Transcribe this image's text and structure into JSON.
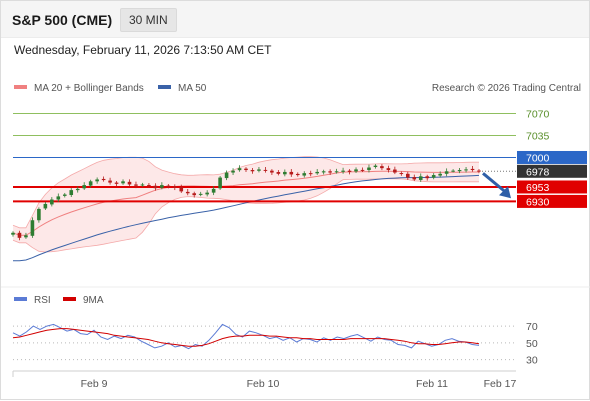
{
  "header": {
    "symbol": "S&P 500 (CME)",
    "timeframe": "30 MIN",
    "datetime": "Wednesday, February 11, 2026 7:13:50 AM CET"
  },
  "chart_data": [
    {
      "type": "candlestick",
      "legend": [
        {
          "name": "MA 20 + Bollinger Bands",
          "color": "#f08080"
        },
        {
          "name": "MA 50",
          "color": "#3a62a8"
        }
      ],
      "credit": "Research © 2026 Trading Central",
      "x_labels": [
        "Feb 9",
        "Feb 10",
        "Feb 11",
        "Feb 17"
      ],
      "resistance_levels": [
        7070,
        7035,
        7000
      ],
      "support_levels": [
        6953,
        6930
      ],
      "pivot": 7000,
      "last_price": 6978,
      "forecast_arrow": "down",
      "ylim": [
        6800,
        7090
      ],
      "colors": {
        "bullish": "#2e7d32",
        "bearish": "#b71c1c",
        "resistance": "#8fbf5f",
        "support": "#e00000",
        "pivot": "#2b67c7",
        "last": "#333333"
      },
      "price_series": [
        6880,
        6872,
        6876,
        6900,
        6918,
        6926,
        6933,
        6938,
        6941,
        6948,
        6950,
        6956,
        6962,
        6965,
        6964,
        6960,
        6958,
        6962,
        6957,
        6955,
        6957,
        6955,
        6951,
        6956,
        6954,
        6952,
        6946,
        6943,
        6940,
        6942,
        6944,
        6950,
        6968,
        6976,
        6979,
        6983,
        6980,
        6978,
        6981,
        6979,
        6976,
        6974,
        6977,
        6973,
        6972,
        6975,
        6974,
        6977,
        6978,
        6976,
        6978,
        6979,
        6977,
        6981,
        6980,
        6984,
        6987,
        6983,
        6980,
        6976,
        6974,
        6968,
        6965,
        6970,
        6967,
        6972,
        6974,
        6978,
        6979,
        6980,
        6981,
        6980,
        6978
      ]
    },
    {
      "type": "line",
      "legend": [
        {
          "name": "RSI",
          "color": "#5b7bd5"
        },
        {
          "name": "9MA",
          "color": "#d20000"
        }
      ],
      "y_ticks": [
        70,
        50,
        30
      ],
      "ylim": [
        20,
        82
      ],
      "rsi": [
        62,
        58,
        63,
        70,
        66,
        70,
        72,
        68,
        64,
        66,
        61,
        60,
        65,
        57,
        54,
        58,
        55,
        59,
        57,
        52,
        48,
        44,
        46,
        50,
        45,
        47,
        43,
        48,
        46,
        53,
        62,
        72,
        68,
        60,
        57,
        64,
        62,
        59,
        55,
        57,
        53,
        56,
        51,
        55,
        54,
        51,
        56,
        53,
        57,
        55,
        58,
        60,
        56,
        52,
        57,
        54,
        53,
        48,
        47,
        44,
        52,
        49,
        46,
        48,
        53,
        55,
        52,
        51,
        48,
        47
      ],
      "ma9": [
        56,
        57,
        59,
        61,
        63,
        65,
        66,
        67,
        67,
        66,
        65,
        64,
        63,
        62,
        61,
        59,
        58,
        57,
        56,
        55,
        54,
        52,
        50,
        49,
        48,
        47,
        46,
        46,
        47,
        49,
        52,
        55,
        57,
        58,
        58,
        59,
        59,
        59,
        58,
        58,
        57,
        56,
        56,
        55,
        55,
        54,
        54,
        54,
        54,
        54,
        55,
        55,
        55,
        55,
        55,
        55,
        54,
        53,
        52,
        50,
        49,
        49,
        48,
        48,
        49,
        50,
        51,
        51,
        50,
        49
      ]
    }
  ]
}
